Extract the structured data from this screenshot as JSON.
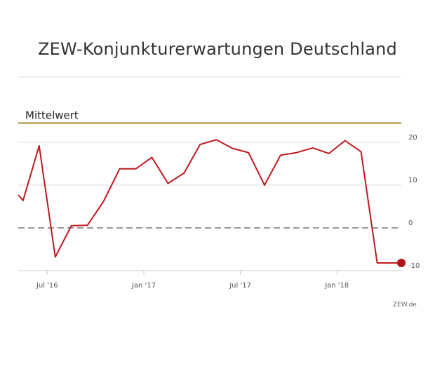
{
  "chart_data": {
    "type": "line",
    "title": "ZEW-Konjunkturerwartungen Deutschland",
    "source": "ZEW.de",
    "mean_label": "Mittelwert",
    "mean_value": 24.5,
    "ylim": [
      -10,
      24.5
    ],
    "y_ticks": [
      {
        "value": 20,
        "label": "20"
      },
      {
        "value": 10,
        "label": "10"
      },
      {
        "value": 0,
        "label": "0"
      },
      {
        "value": -10,
        "label": "-10"
      }
    ],
    "x_ticks": [
      {
        "index": 2,
        "label": "Jul '16"
      },
      {
        "index": 8,
        "label": "Jan '17"
      },
      {
        "index": 14,
        "label": "Jul '17"
      },
      {
        "index": 20,
        "label": "Jan '18"
      }
    ],
    "x_range": [
      0.2,
      24
    ],
    "zero_line": "dashed",
    "colors": {
      "series": "#c0191e",
      "mean": "#a08a2a",
      "zero": "#999999",
      "grid": "#dddddd"
    },
    "series": [
      {
        "name": "",
        "x": [
          0.2,
          0.5,
          1.5,
          2.5,
          3.5,
          4.5,
          5.5,
          6.5,
          7.5,
          8.5,
          9.5,
          10.5,
          11.5,
          12.5,
          13.5,
          14.5,
          15.5,
          16.5,
          17.5,
          18.5,
          19.5,
          20.5,
          21.5,
          22.5,
          23.5,
          24
        ],
        "values": [
          7.7,
          6.4,
          19.2,
          -6.8,
          0.5,
          0.6,
          6.2,
          13.8,
          13.8,
          16.5,
          10.4,
          12.8,
          19.5,
          20.6,
          18.6,
          17.6,
          10.0,
          17.0,
          17.6,
          18.7,
          17.4,
          20.4,
          17.8,
          -8.2,
          -8.2,
          -8.2
        ]
      }
    ],
    "highlight_last_point": true
  }
}
